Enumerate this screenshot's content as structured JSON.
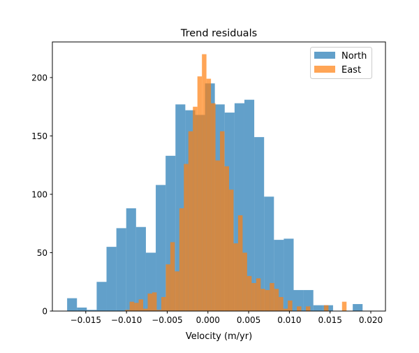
{
  "chart_data": {
    "type": "histogram",
    "title": "Trend residuals",
    "xlabel": "Velocity (m/yr)",
    "ylabel": "",
    "xlim": [
      -0.0191,
      0.0218
    ],
    "ylim": [
      0,
      230.5
    ],
    "xticks": [
      -0.015,
      -0.01,
      -0.005,
      0.0,
      0.005,
      0.01,
      0.015,
      0.02
    ],
    "xtick_labels": [
      "−0.015",
      "−0.010",
      "−0.005",
      "0.000",
      "0.005",
      "0.010",
      "0.015",
      "0.020"
    ],
    "yticks": [
      0,
      50,
      100,
      150,
      200
    ],
    "ytick_labels": [
      "0",
      "50",
      "100",
      "150",
      "200"
    ],
    "grid": false,
    "legend_position": "top-right",
    "series": [
      {
        "name": "North",
        "color": "#1f77b4",
        "alpha": 0.7,
        "bin_start": -0.01729,
        "bin_end": 0.01899,
        "counts": [
          11,
          3,
          1,
          25,
          55,
          71,
          88,
          72,
          50,
          108,
          133,
          177,
          172,
          168,
          195,
          177,
          170,
          178,
          181,
          149,
          98,
          61,
          62,
          18,
          18,
          5,
          5,
          0,
          0,
          6
        ]
      },
      {
        "name": "East",
        "color": "#ff7f0e",
        "alpha": 0.7,
        "bin_start": -0.01017,
        "bin_end": 0.01702,
        "counts": [
          1,
          8,
          7,
          10,
          2,
          15,
          16,
          1,
          12,
          40,
          59,
          34,
          88,
          126,
          154,
          175,
          201,
          220,
          199,
          178,
          129,
          154,
          124,
          104,
          58,
          82,
          50,
          30,
          24,
          28,
          19,
          18,
          24,
          19,
          12,
          2,
          9,
          0,
          4,
          0,
          4,
          0,
          0,
          0,
          5,
          0,
          0,
          0,
          8
        ]
      }
    ]
  }
}
